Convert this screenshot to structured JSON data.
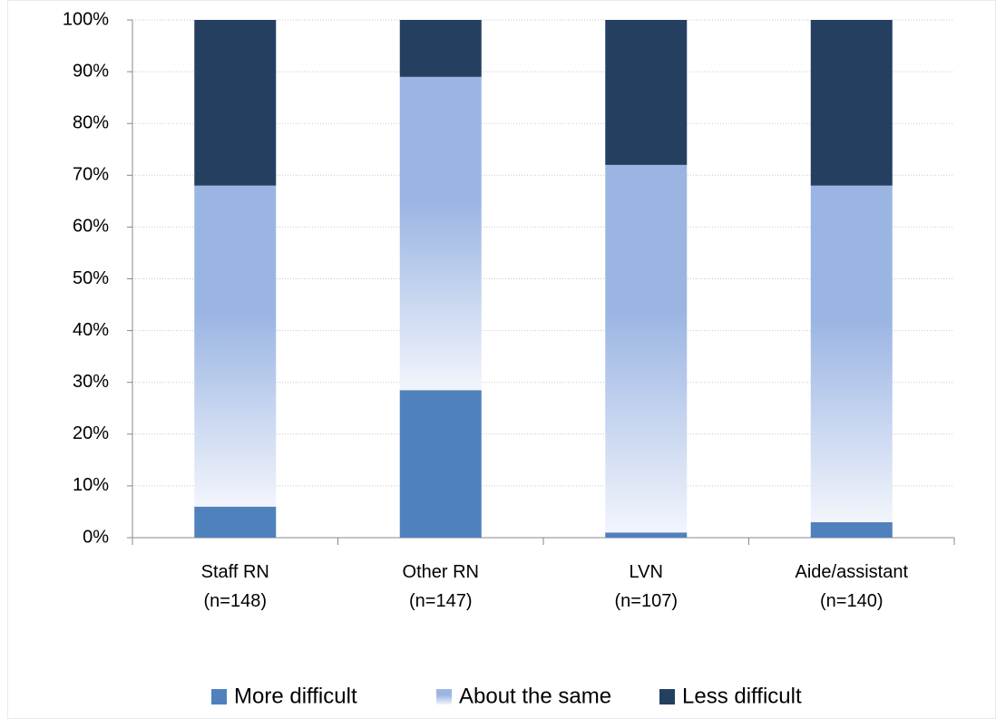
{
  "chart_data": {
    "type": "stacked_bar",
    "categories": [
      "Staff RN\n(n=148)",
      "Other RN\n(n=147)",
      "LVN\n(n=107)",
      "Aide/assistant\n(n=140)"
    ],
    "series": [
      {
        "name": "More difficult",
        "color": "#4f81bd",
        "values": [
          6,
          28.5,
          1,
          3
        ]
      },
      {
        "name": "About the same",
        "color": "#9bb5e3",
        "values": [
          62,
          60.5,
          71,
          65
        ]
      },
      {
        "name": "Less difficult",
        "color": "#243f60",
        "values": [
          32,
          11,
          28,
          32
        ]
      }
    ],
    "ylim": [
      0,
      100
    ],
    "yticks": [
      {
        "value": 0,
        "label": "0%"
      },
      {
        "value": 10,
        "label": "10%"
      },
      {
        "value": 20,
        "label": "20%"
      },
      {
        "value": 30,
        "label": "30%"
      },
      {
        "value": 40,
        "label": "40%"
      },
      {
        "value": 50,
        "label": "50%"
      },
      {
        "value": 60,
        "label": "60%"
      },
      {
        "value": 70,
        "label": "70%"
      },
      {
        "value": 80,
        "label": "80%"
      },
      {
        "value": 90,
        "label": "90%"
      },
      {
        "value": 100,
        "label": "100%"
      }
    ],
    "grid": true,
    "legend": "bottom"
  }
}
